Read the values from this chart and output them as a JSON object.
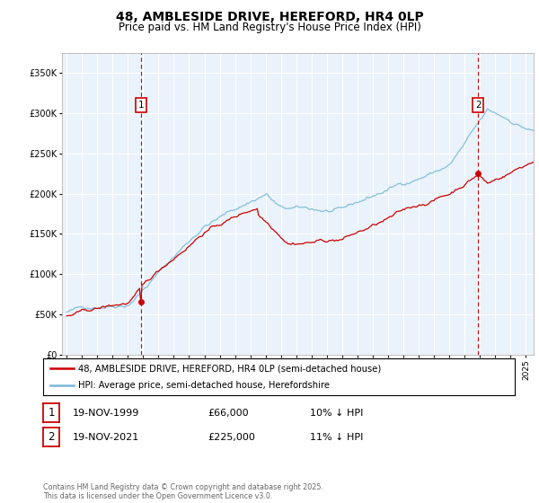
{
  "title1": "48, AMBLESIDE DRIVE, HEREFORD, HR4 0LP",
  "title2": "Price paid vs. HM Land Registry's House Price Index (HPI)",
  "legend_line1": "48, AMBLESIDE DRIVE, HEREFORD, HR4 0LP (semi-detached house)",
  "legend_line2": "HPI: Average price, semi-detached house, Herefordshire",
  "annotation1": {
    "num": "1",
    "date": "19-NOV-1999",
    "price": "£66,000",
    "note": "10% ↓ HPI"
  },
  "annotation2": {
    "num": "2",
    "date": "19-NOV-2021",
    "price": "£225,000",
    "note": "11% ↓ HPI"
  },
  "footnote": "Contains HM Land Registry data © Crown copyright and database right 2025.\nThis data is licensed under the Open Government Licence v3.0.",
  "sale1_year": 1999.88,
  "sale1_price": 66000,
  "sale2_year": 2021.88,
  "sale2_price": 225000,
  "hpi_color": "#7BB8D8",
  "price_color": "#CC0000",
  "vline_color": "#CC0000",
  "plot_bg": "#EAF3FB",
  "ylim": [
    0,
    375000
  ],
  "yticks": [
    0,
    50000,
    100000,
    150000,
    200000,
    250000,
    300000,
    350000
  ],
  "xlim_start": 1994.7,
  "xlim_end": 2025.5
}
